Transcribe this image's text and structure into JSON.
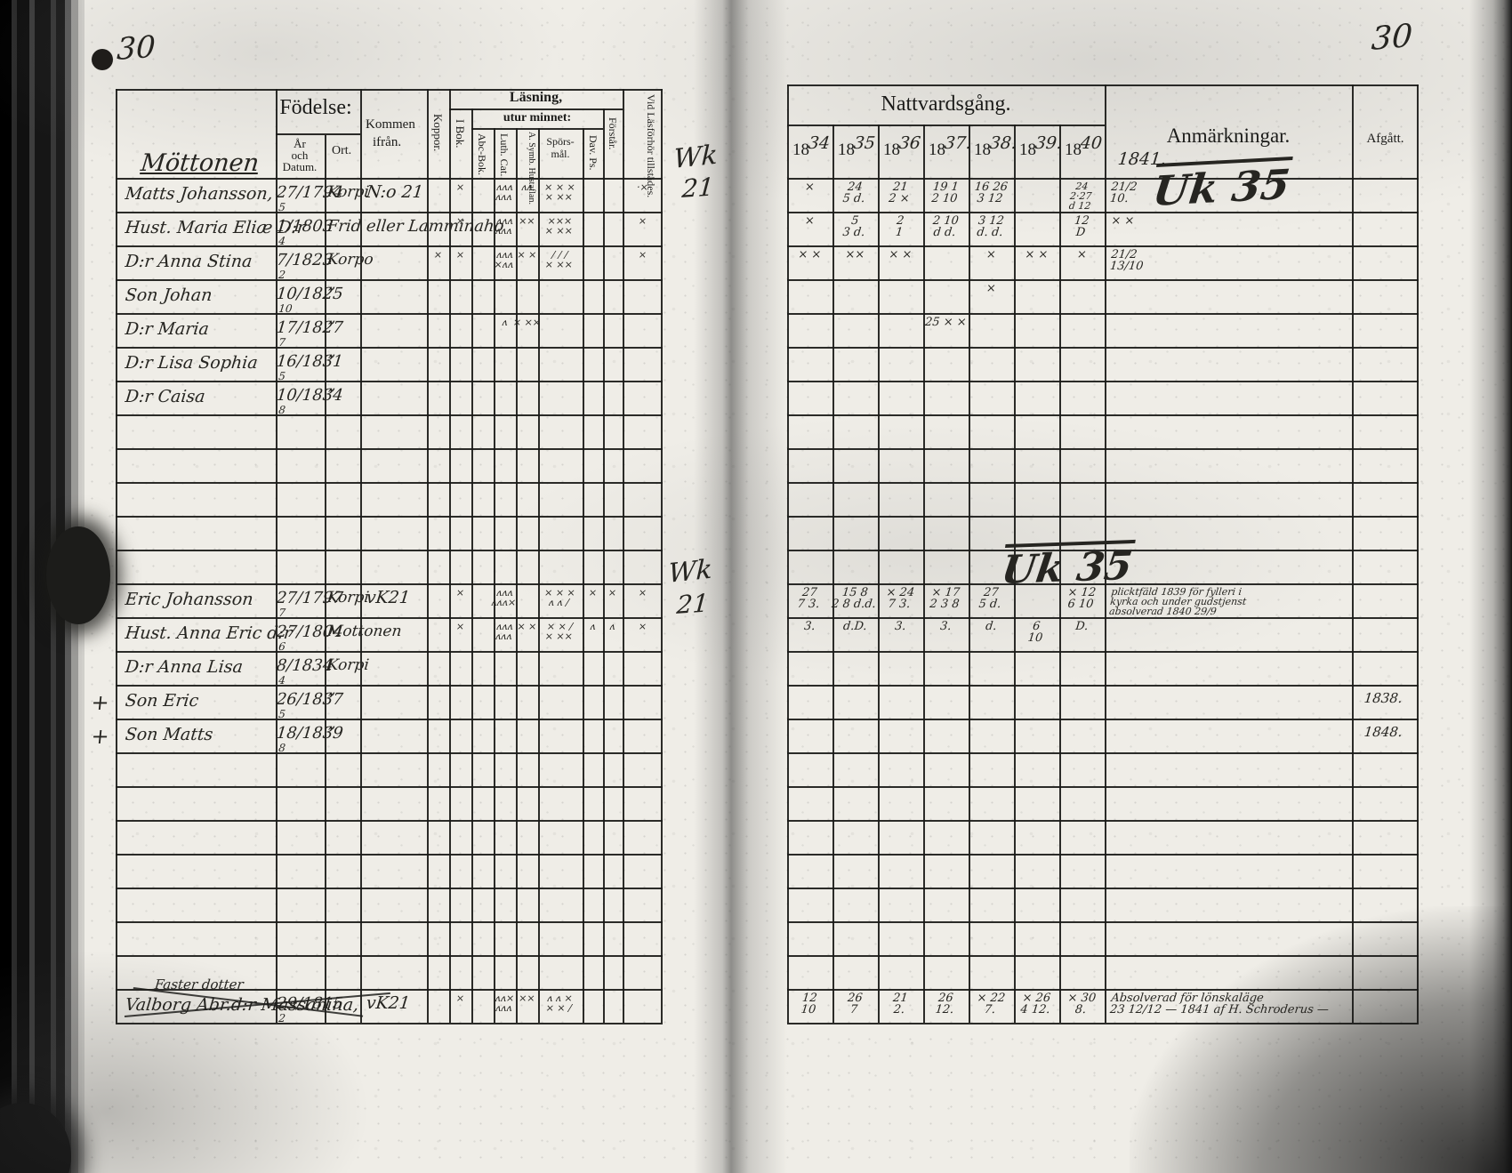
{
  "marginalia": {
    "left_page_number": "30",
    "right_page_number": "30",
    "wk_top": [
      "Wk",
      "21"
    ],
    "wk_mid": [
      "Wk",
      "21"
    ],
    "uk_top": "Uk 35",
    "uk_mid": "Uk 35",
    "plus_mark": "+",
    "handwritten_year": "1841."
  },
  "left_table": {
    "headers": {
      "fodelse": "Födelse:",
      "ar_och_datum": [
        "År",
        "och",
        "Datum."
      ],
      "ort": "Ort.",
      "kommen": [
        "Kommen",
        "ifrån."
      ],
      "koppor": "Koppor.",
      "lasning": "Läsning,",
      "utur_minnet": "utur minnet:",
      "i_bok": "I Bok.",
      "abc_bok": "Abc-Bok.",
      "luth_cat": "Luth. Cat.",
      "symb": "A. Symb. Hustaflan.",
      "sporsmal": [
        "Spörs-",
        "mål."
      ],
      "dav_ps": "Dav. Ps.",
      "forstar": "Förstår.",
      "vid": "Vid Läsförhör tillstädes."
    },
    "family_heading": "Möttonen",
    "rows": [
      {
        "r": 0,
        "name": "Matts Johansson,",
        "day": "27",
        "mon": "5",
        "year": "1794",
        "ort": "Korpi",
        "kommen": "N:o 21",
        "marks": {
          "ibok": [
            "×"
          ],
          "luth": [
            "ʌʌʌ",
            "ʌʌʌ"
          ],
          "symb": [
            "ʌʌ"
          ],
          "spors": [
            "× × ×",
            "× ××"
          ],
          "vid": [
            "·×"
          ]
        }
      },
      {
        "r": 1,
        "name": "Hust. Maria Eliæ D:r",
        "day": "1",
        "mon": "4",
        "year": "1803",
        "ort": "Frid eller Lamminaho",
        "ort_wide": true,
        "marks": {
          "ibok": [
            "×"
          ],
          "luth": [
            "ʌʌʌ",
            "ʌʌʌ"
          ],
          "symb": [
            "××"
          ],
          "spors": [
            "×××",
            "× ××"
          ],
          "vid": [
            "×"
          ]
        }
      },
      {
        "r": 2,
        "name": "D:r Anna Stina",
        "day": "7",
        "mon": "2",
        "year": "1823",
        "ort": "Korpo",
        "marks": {
          "koppor": [
            "×"
          ],
          "ibok": [
            "×"
          ],
          "luth": [
            "ʌʌʌ",
            "×ʌʌ"
          ],
          "symb": [
            "× ×"
          ],
          "spors": [
            "/ / /",
            "× ××"
          ],
          "vid": [
            "×"
          ]
        }
      },
      {
        "r": 3,
        "name": "Son Johan",
        "day": "10",
        "mon": "10",
        "year": "1825",
        "ort": "”",
        "marks": {}
      },
      {
        "r": 4,
        "name": "D:r Maria",
        "day": "17",
        "mon": "7",
        "year": "1827",
        "ort": "”",
        "marks": {
          "luth": [
            "ʌ"
          ],
          "symb": [
            "× ××"
          ]
        }
      },
      {
        "r": 5,
        "name": "D:r Lisa Sophia",
        "day": "16",
        "mon": "5",
        "year": "1831",
        "ort": "”",
        "marks": {}
      },
      {
        "r": 6,
        "name": "D:r Caisa",
        "day": "10",
        "mon": "8",
        "year": "1834",
        "ort": "”",
        "marks": {}
      },
      {
        "r": 12,
        "name": "Eric Johansson",
        "day": "27",
        "mon": "7",
        "year": "1797",
        "ort": "Korpi",
        "kommen": "vK21",
        "marks": {
          "ibok": [
            "×"
          ],
          "luth": [
            "ʌʌʌ",
            "ʌʌʌ×"
          ],
          "spors": [
            "× × ×",
            "ʌ ʌ /"
          ],
          "dav": [
            "×"
          ],
          "forstar": [
            "×"
          ],
          "vid": [
            "×"
          ]
        }
      },
      {
        "r": 13,
        "name": "Hust. Anna Eric d:r",
        "day": "27",
        "mon": "6",
        "year": "1804",
        "ort": "Mottonen",
        "marks": {
          "ibok": [
            "×"
          ],
          "luth": [
            "ʌʌʌ",
            "ʌʌʌ"
          ],
          "symb": [
            "× ×"
          ],
          "spors": [
            "× × /",
            "× ××"
          ],
          "dav": [
            "ʌ"
          ],
          "forstar": [
            "ʌ"
          ],
          "vid": [
            "×"
          ]
        }
      },
      {
        "r": 14,
        "name": "D:r Anna Lisa",
        "day": "8",
        "mon": "4",
        "year": "1834",
        "ort": "Korpi",
        "marks": {}
      },
      {
        "r": 15,
        "name": "Son Eric",
        "day": "26",
        "mon": "5",
        "year": "1837",
        "ort": "”",
        "plus": true,
        "marks": {}
      },
      {
        "r": 16,
        "name": "Son Matts",
        "day": "18",
        "mon": "8",
        "year": "1839",
        "ort": "”",
        "plus": true,
        "marks": {}
      },
      {
        "r": 24,
        "name": "Valborg Abr.d:r Massanina,",
        "name_above": "Faster dotter",
        "day": "29",
        "mon": "2",
        "year": "1815",
        "kommen": "vK21",
        "struck": true,
        "marks": {
          "ibok": [
            "×"
          ],
          "luth": [
            "ʌʌ×",
            "ʌʌʌ"
          ],
          "symb": [
            "××"
          ],
          "spors": [
            "ʌ ʌ ×",
            "× × /"
          ]
        }
      }
    ]
  },
  "right_table": {
    "title": "Nattvardsgång.",
    "years": [
      "1834",
      "1835",
      "1836",
      "1837.",
      "1838.",
      "1839.",
      "1840"
    ],
    "anm_label": "Anmärkningar.",
    "afg_label": "Afgått.",
    "rows": [
      {
        "r": 0,
        "cells": {
          "y0": [
            "×"
          ],
          "y1": [
            "24",
            "5 d."
          ],
          "y2": [
            "21",
            "2 ×"
          ],
          "y3": [
            "19 1",
            "2 10"
          ],
          "y4": [
            "16 26",
            "3 12"
          ],
          "y6": [
            "24",
            "2·27",
            "d 12"
          ],
          "anm": [
            "21/2",
            "10."
          ]
        }
      },
      {
        "r": 1,
        "cells": {
          "y0": [
            "×"
          ],
          "y1": [
            "5",
            "3 d."
          ],
          "y2": [
            "2",
            "1"
          ],
          "y3": [
            "2 10",
            "d d."
          ],
          "y4": [
            "3 12",
            "d. d."
          ],
          "y6": [
            "12",
            "D"
          ],
          "anm": [
            "× ×"
          ]
        }
      },
      {
        "r": 2,
        "cells": {
          "y0": [
            "× ×"
          ],
          "y1": [
            "××"
          ],
          "y2": [
            "× ×"
          ],
          "y4": [
            "×"
          ],
          "y5": [
            "× ×"
          ],
          "y6": [
            "×"
          ],
          "anm": [
            "21/2",
            "13/10"
          ]
        }
      },
      {
        "r": 3,
        "cells": {
          "y4": [
            "×"
          ]
        }
      },
      {
        "r": 4,
        "cells": {
          "y3": [
            "25 × ×"
          ]
        }
      },
      {
        "r": 12,
        "cells": {
          "y0": [
            "27",
            "7 3."
          ],
          "y1": [
            "15 8",
            "2 8 d.d."
          ],
          "y2": [
            "× 24",
            "7 3."
          ],
          "y3": [
            "× 17",
            "2 3 8"
          ],
          "y4": [
            "27",
            "5 d."
          ],
          "y6": [
            "× 12",
            "6 10"
          ],
          "anm": [
            "plicktfäld 1839 för fylleri i",
            "kyrka och under gudstjenst",
            "absolverad 1840 29/9"
          ]
        }
      },
      {
        "r": 13,
        "cells": {
          "y0": [
            "3."
          ],
          "y1": [
            "d.D."
          ],
          "y2": [
            "3."
          ],
          "y3": [
            "3."
          ],
          "y4": [
            "d."
          ],
          "y5": [
            "6",
            "10"
          ],
          "y6": [
            "D."
          ]
        }
      },
      {
        "r": 15,
        "cells": {
          "afg": [
            "1838."
          ]
        }
      },
      {
        "r": 16,
        "cells": {
          "afg": [
            "1848."
          ]
        }
      },
      {
        "r": 24,
        "cells": {
          "y0": [
            "12",
            "10"
          ],
          "y1": [
            "26",
            "7"
          ],
          "y2": [
            "21",
            "2."
          ],
          "y3": [
            "26",
            "12."
          ],
          "y4": [
            "× 22",
            "7."
          ],
          "y5": [
            "× 26",
            "4 12."
          ],
          "y6": [
            "× 30",
            "8."
          ],
          "anm": [
            "Absolverad för lönskaläge",
            "23 12/12 — 1841 af H. Schroderus —"
          ]
        }
      }
    ]
  }
}
